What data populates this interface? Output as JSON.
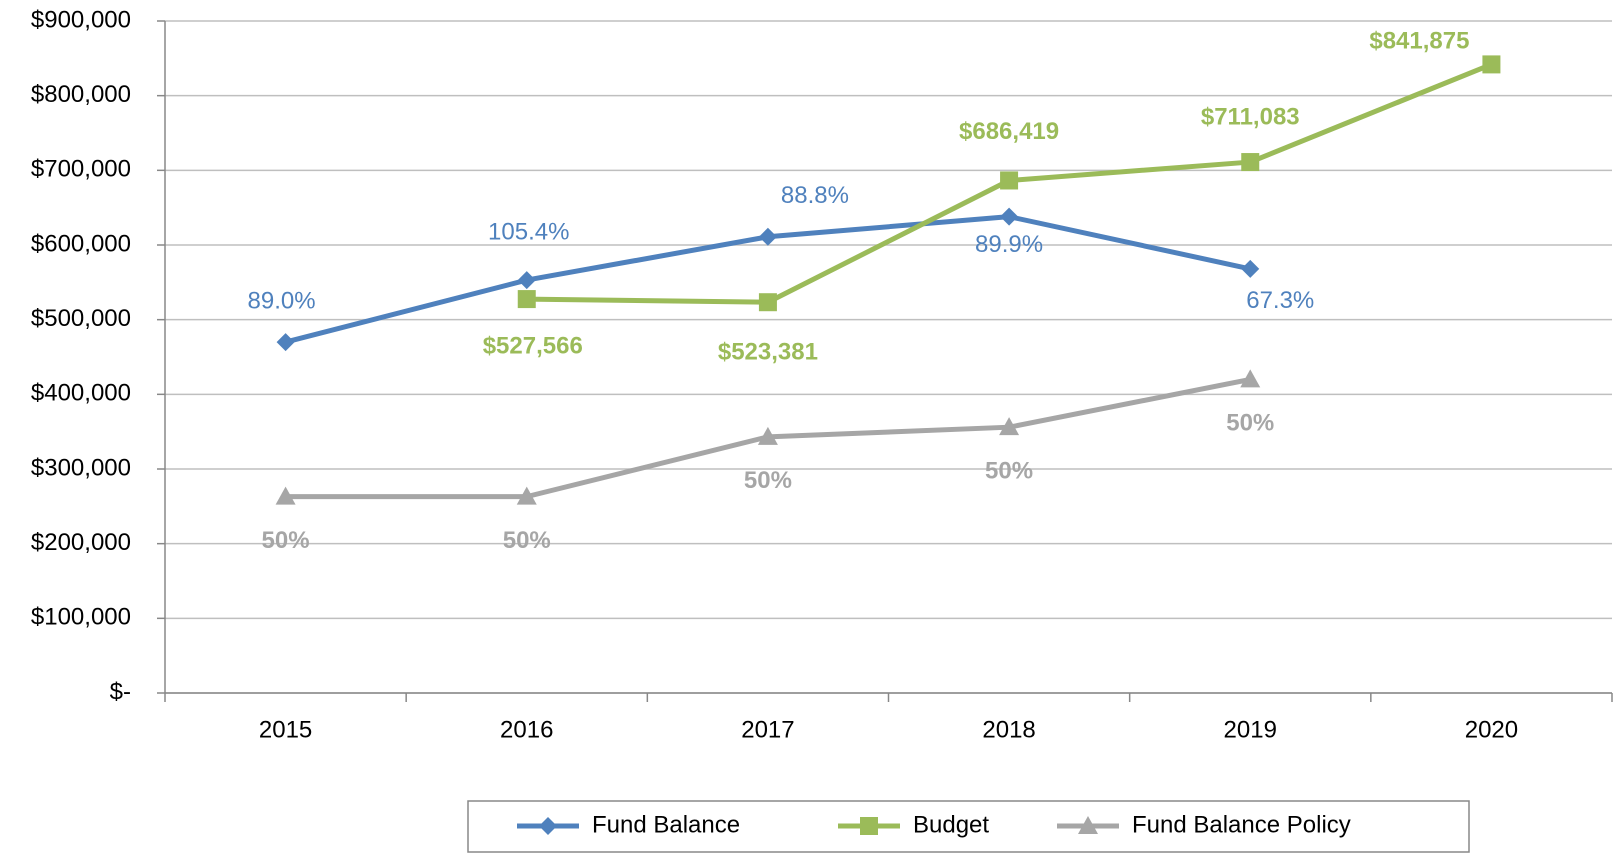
{
  "chart_data": {
    "type": "line",
    "categories": [
      "2015",
      "2016",
      "2017",
      "2018",
      "2019",
      "2020"
    ],
    "series": [
      {
        "name": "Fund Balance",
        "color": "#4f81bd",
        "marker": "diamond",
        "values": [
          470000,
          553000,
          611000,
          638000,
          568000,
          null
        ],
        "annotations": [
          "89.0%",
          "105.4%",
          "88.8%",
          "89.9%",
          "67.3%",
          null
        ]
      },
      {
        "name": "Budget",
        "color": "#9bbb59",
        "marker": "square",
        "values": [
          null,
          527566,
          523381,
          686419,
          711083,
          841875
        ],
        "value_labels": [
          null,
          "$527,566",
          "$523,381",
          "$686,419",
          "$711,083",
          "$841,875"
        ]
      },
      {
        "name": "Fund Balance Policy",
        "color": "#a6a6a6",
        "marker": "triangle",
        "values": [
          263000,
          263000,
          343000,
          356000,
          420000,
          null
        ],
        "annotations": [
          "50%",
          "50%",
          "50%",
          "50%",
          "50%",
          null
        ]
      }
    ],
    "ylim": [
      0,
      900000
    ],
    "yticks": [
      {
        "value": 0,
        "label": "$-"
      },
      {
        "value": 100000,
        "label": "$100,000"
      },
      {
        "value": 200000,
        "label": "$200,000"
      },
      {
        "value": 300000,
        "label": "$300,000"
      },
      {
        "value": 400000,
        "label": "$400,000"
      },
      {
        "value": 500000,
        "label": "$500,000"
      },
      {
        "value": 600000,
        "label": "$600,000"
      },
      {
        "value": 700000,
        "label": "$700,000"
      },
      {
        "value": 800000,
        "label": "$800,000"
      },
      {
        "value": 900000,
        "label": "$900,000"
      }
    ],
    "grid": true,
    "legend": "bottom"
  }
}
